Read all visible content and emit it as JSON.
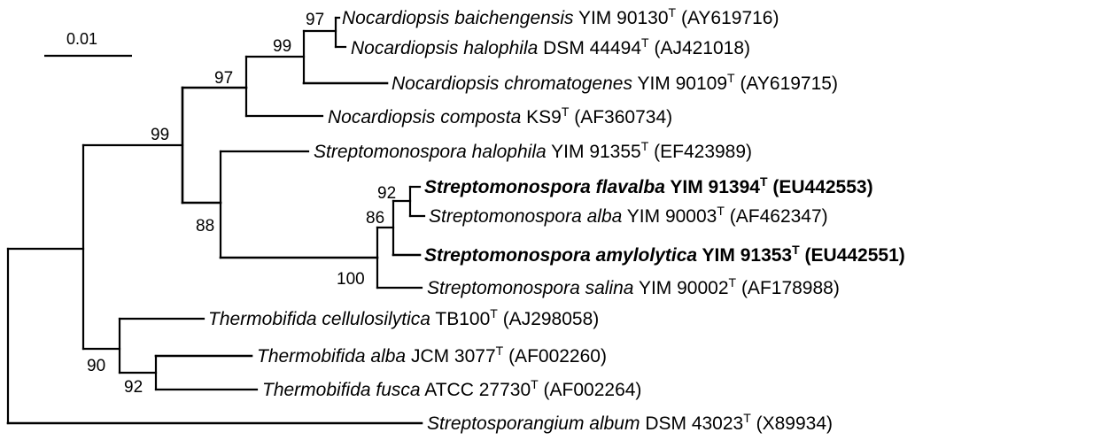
{
  "scale_bar": {
    "label": "0.01"
  },
  "taxa": [
    {
      "id": "t1",
      "genus_species": "Nocardiopsis baichengensis",
      "strain": "YIM 90130",
      "superscript": "T",
      "accession": "(AY619716)",
      "bold": false
    },
    {
      "id": "t2",
      "genus_species": "Nocardiopsis halophila",
      "strain": "DSM 44494",
      "superscript": "T",
      "accession": "(AJ421018)",
      "bold": false
    },
    {
      "id": "t3",
      "genus_species": "Nocardiopsis chromatogenes",
      "strain": "YIM 90109",
      "superscript": "T",
      "accession": "(AY619715)",
      "bold": false
    },
    {
      "id": "t4",
      "genus_species": "Nocardiopsis composta",
      "strain": "KS9",
      "superscript": "T",
      "accession": "(AF360734)",
      "bold": false
    },
    {
      "id": "t5",
      "genus_species": "Streptomonospora halophila",
      "strain": "YIM 91355",
      "superscript": "T",
      "accession": "(EF423989)",
      "bold": false
    },
    {
      "id": "t6",
      "genus_species": "Streptomonospora flavalba",
      "strain": "YIM 91394",
      "superscript": "T",
      "accession": "(EU442553)",
      "bold": true
    },
    {
      "id": "t7",
      "genus_species": "Streptomonospora alba",
      "strain": "YIM 90003",
      "superscript": "T",
      "accession": "(AF462347)",
      "bold": false
    },
    {
      "id": "t8",
      "genus_species": "Streptomonospora amylolytica",
      "strain": "YIM 91353",
      "superscript": "T",
      "accession": "(EU442551)",
      "bold": true
    },
    {
      "id": "t9",
      "genus_species": "Streptomonospora salina",
      "strain": "YIM 90002",
      "superscript": "T",
      "accession": "(AF178988)",
      "bold": false
    },
    {
      "id": "t10",
      "genus_species": "Thermobifida cellulosilytica",
      "strain": "TB100",
      "superscript": "T",
      "accession": "(AJ298058)",
      "bold": false
    },
    {
      "id": "t11",
      "genus_species": "Thermobifida alba",
      "strain": "JCM 3077",
      "superscript": "T",
      "accession": "(AF002260)",
      "bold": false
    },
    {
      "id": "t12",
      "genus_species": "Thermobifida fusca",
      "strain": "ATCC 27730",
      "superscript": "T",
      "accession": "(AF002264)",
      "bold": false
    },
    {
      "id": "t13",
      "genus_species": "Streptosporangium album",
      "strain": "DSM 43023",
      "superscript": "T",
      "accession": "(X89934)",
      "bold": false
    }
  ],
  "bootstrap_values": [
    {
      "id": "b_nb_nh",
      "value": "97"
    },
    {
      "id": "b_nb_nh_nc",
      "value": "99"
    },
    {
      "id": "b_nocardiopsis",
      "value": "97"
    },
    {
      "id": "b_noc_strep",
      "value": "99"
    },
    {
      "id": "b_fl_al",
      "value": "92"
    },
    {
      "id": "b_fl_al_am",
      "value": "86"
    },
    {
      "id": "b_strep_core",
      "value": "100"
    },
    {
      "id": "b_streptomonospora",
      "value": "88"
    },
    {
      "id": "b_thermobifida",
      "value": "90"
    },
    {
      "id": "b_alba_fusca",
      "value": "92"
    }
  ]
}
